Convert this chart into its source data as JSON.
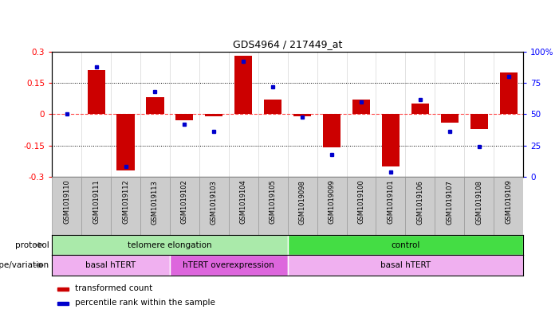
{
  "title": "GDS4964 / 217449_at",
  "samples": [
    "GSM1019110",
    "GSM1019111",
    "GSM1019112",
    "GSM1019113",
    "GSM1019102",
    "GSM1019103",
    "GSM1019104",
    "GSM1019105",
    "GSM1019098",
    "GSM1019099",
    "GSM1019100",
    "GSM1019101",
    "GSM1019106",
    "GSM1019107",
    "GSM1019108",
    "GSM1019109"
  ],
  "transformed_count": [
    0.0,
    0.21,
    -0.27,
    0.08,
    -0.03,
    -0.01,
    0.28,
    0.07,
    -0.01,
    -0.16,
    0.07,
    -0.25,
    0.05,
    -0.04,
    -0.07,
    0.2
  ],
  "percentile_rank": [
    50,
    88,
    8,
    68,
    42,
    36,
    92,
    72,
    48,
    18,
    60,
    4,
    62,
    36,
    24,
    80
  ],
  "ylim_left": [
    -0.3,
    0.3
  ],
  "ylim_right": [
    0,
    100
  ],
  "yticks_left": [
    -0.3,
    -0.15,
    0.0,
    0.15,
    0.3
  ],
  "yticks_right": [
    0,
    25,
    50,
    75,
    100
  ],
  "protocol_groups": [
    {
      "label": "telomere elongation",
      "start": 0,
      "end": 8,
      "color": "#AAEAAA"
    },
    {
      "label": "control",
      "start": 8,
      "end": 16,
      "color": "#44DD44"
    }
  ],
  "genotype_groups": [
    {
      "label": "basal hTERT",
      "start": 0,
      "end": 4,
      "color": "#F0B0F0"
    },
    {
      "label": "hTERT overexpression",
      "start": 4,
      "end": 8,
      "color": "#DD66DD"
    },
    {
      "label": "basal hTERT",
      "start": 8,
      "end": 16,
      "color": "#F0B0F0"
    }
  ],
  "bar_color": "#CC0000",
  "dot_color": "#0000CC",
  "zero_line_color": "#FF4444",
  "grid_color": "#000000",
  "label_protocol": "protocol",
  "label_genotype": "genotype/variation",
  "legend_bar": "transformed count",
  "legend_dot": "percentile rank within the sample",
  "bar_width": 0.6,
  "xtick_bg": "#CCCCCC",
  "fig_bg": "#FFFFFF"
}
